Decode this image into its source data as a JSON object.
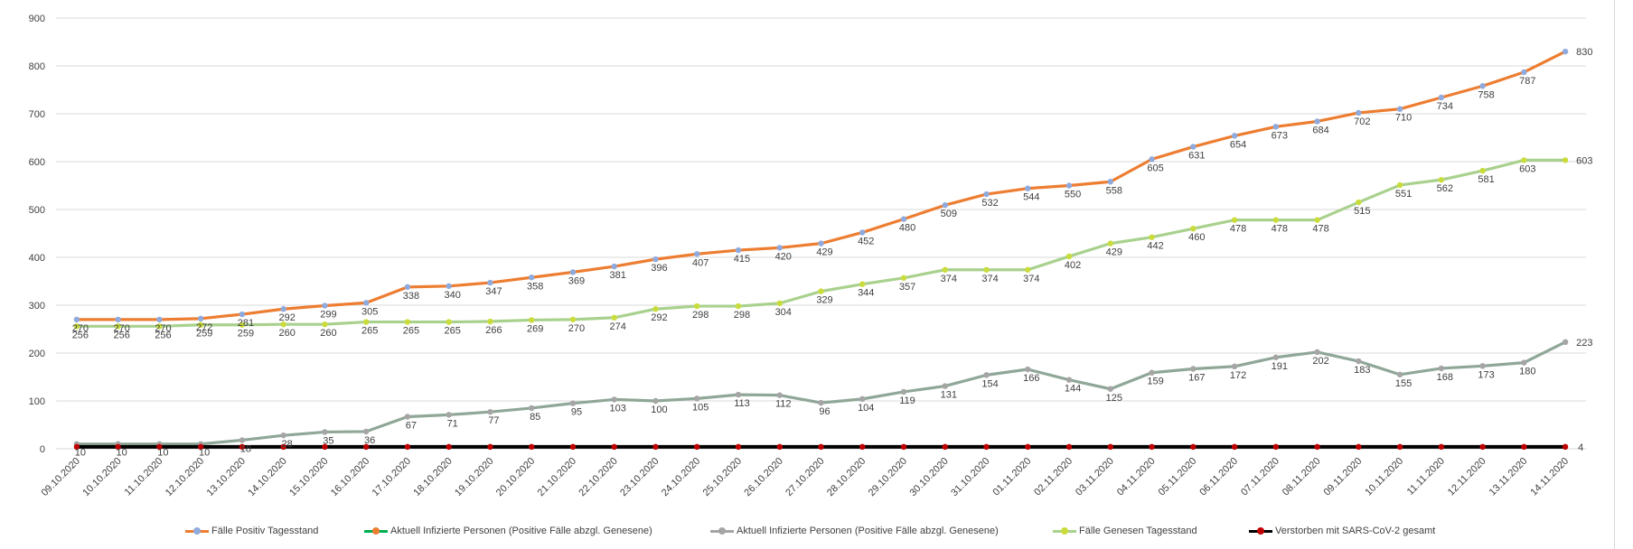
{
  "chart_data": {
    "type": "line",
    "title": "",
    "xlabel": "",
    "ylabel": "",
    "ylim": [
      0,
      900
    ],
    "yticks": [
      "0",
      "100",
      "200",
      "300",
      "400",
      "500",
      "600",
      "700",
      "800",
      "900"
    ],
    "grid": true,
    "legend_position": "bottom",
    "categories": [
      "09.10.2020",
      "10.10.2020",
      "11.10.2020",
      "12.10.2020",
      "13.10.2020",
      "14.10.2020",
      "15.10.2020",
      "16.10.2020",
      "17.10.2020",
      "18.10.2020",
      "19.10.2020",
      "20.10.2020",
      "21.10.2020",
      "22.10.2020",
      "23.10.2020",
      "24.10.2020",
      "25.10.2020",
      "26.10.2020",
      "27.10.2020",
      "28.10.2020",
      "29.10.2020",
      "30.10.2020",
      "31.10.2020",
      "01.11.2020",
      "02.11.2020",
      "03.11.2020",
      "04.11.2020",
      "05.11.2020",
      "06.11.2020",
      "07.11.2020",
      "08.11.2020",
      "09.11.2020",
      "10.11.2020",
      "11.11.2020",
      "12.11.2020",
      "13.11.2020",
      "14.11.2020"
    ],
    "series": [
      {
        "name": "Fälle Positiv Tagesstand",
        "color": "#ed7d31",
        "marker": "#8faadc",
        "values": [
          270,
          270,
          270,
          272,
          281,
          292,
          299,
          305,
          338,
          340,
          347,
          358,
          369,
          381,
          396,
          407,
          415,
          420,
          429,
          452,
          480,
          509,
          532,
          544,
          550,
          558,
          605,
          631,
          654,
          673,
          684,
          702,
          710,
          734,
          758,
          787,
          830
        ],
        "labels": [
          "270",
          "270",
          "270",
          "272",
          "281",
          "292",
          "299",
          "305",
          "338",
          "340",
          "347",
          "358",
          "369",
          "381",
          "396",
          "407",
          "415",
          "420",
          "429",
          "452",
          "480",
          "509",
          "532",
          "544",
          "550",
          "558",
          "605",
          "631",
          "654",
          "673",
          "684",
          "702",
          "710",
          "734",
          "758",
          "787",
          "830"
        ]
      },
      {
        "name": "Fälle Genesen Tagesstand",
        "color": "#a9d18e",
        "marker": "#c9dc3c",
        "values": [
          256,
          256,
          256,
          259,
          259,
          260,
          260,
          265,
          265,
          265,
          266,
          269,
          270,
          274,
          292,
          298,
          298,
          304,
          329,
          344,
          357,
          374,
          374,
          374,
          402,
          429,
          442,
          460,
          478,
          478,
          478,
          515,
          551,
          562,
          581,
          603,
          603
        ],
        "labels": [
          "256",
          "256",
          "256",
          "259",
          "259",
          "260",
          "260",
          "265",
          "265",
          "265",
          "266",
          "269",
          "270",
          "274",
          "292",
          "298",
          "298",
          "304",
          "329",
          "344",
          "357",
          "374",
          "374",
          "374",
          "402",
          "429",
          "442",
          "460",
          "478",
          "478",
          "478",
          "515",
          "551",
          "562",
          "581",
          "603",
          "603"
        ]
      },
      {
        "name": "Aktuell Infizierte Personen (Positive Fälle abzgl. Genesene)",
        "color": "#8fa797",
        "marker": "#a5a5a5",
        "values": [
          10,
          10,
          10,
          10,
          18,
          28,
          35,
          36,
          67,
          71,
          77,
          85,
          95,
          103,
          100,
          105,
          113,
          112,
          96,
          104,
          119,
          131,
          154,
          166,
          144,
          125,
          159,
          167,
          172,
          191,
          202,
          183,
          155,
          168,
          173,
          180,
          223
        ],
        "labels": [
          "10",
          "10",
          "10",
          "10",
          "18",
          "28",
          "35",
          "36",
          "67",
          "71",
          "77",
          "85",
          "95",
          "103",
          "100",
          "105",
          "113",
          "112",
          "96",
          "104",
          "119",
          "131",
          "154",
          "166",
          "144",
          "125",
          "159",
          "167",
          "172",
          "191",
          "202",
          "183",
          "155",
          "168",
          "173",
          "180",
          "223"
        ]
      },
      {
        "name": "Verstorben mit SARS-CoV-2 gesamt",
        "color": "#000000",
        "marker": "#c00000",
        "values": [
          4,
          4,
          4,
          4,
          4,
          4,
          4,
          4,
          4,
          4,
          4,
          4,
          4,
          4,
          4,
          4,
          4,
          4,
          4,
          4,
          4,
          4,
          4,
          4,
          4,
          4,
          4,
          4,
          4,
          4,
          4,
          4,
          4,
          4,
          4,
          4,
          4
        ],
        "labels": [
          "4"
        ]
      }
    ],
    "legend": [
      {
        "label": "Fälle Positiv Tagesstand",
        "line": "#ed7d31",
        "dot": "#8faadc"
      },
      {
        "label": "Aktuell Infizierte Personen (Positive Fälle abzgl. Genesene)",
        "line": "#00b050",
        "dot": "#ed7d31"
      },
      {
        "label": "Aktuell Infizierte Personen (Positive Fälle abzgl. Genesene)",
        "line": "#a5a5a5",
        "dot": "#a5a5a5"
      },
      {
        "label": "Fälle Genesen Tagesstand",
        "line": "#a9d18e",
        "dot": "#c9dc3c"
      },
      {
        "label": "Verstorben mit SARS-CoV-2 gesamt",
        "line": "#000000",
        "dot": "#c00000"
      }
    ]
  }
}
